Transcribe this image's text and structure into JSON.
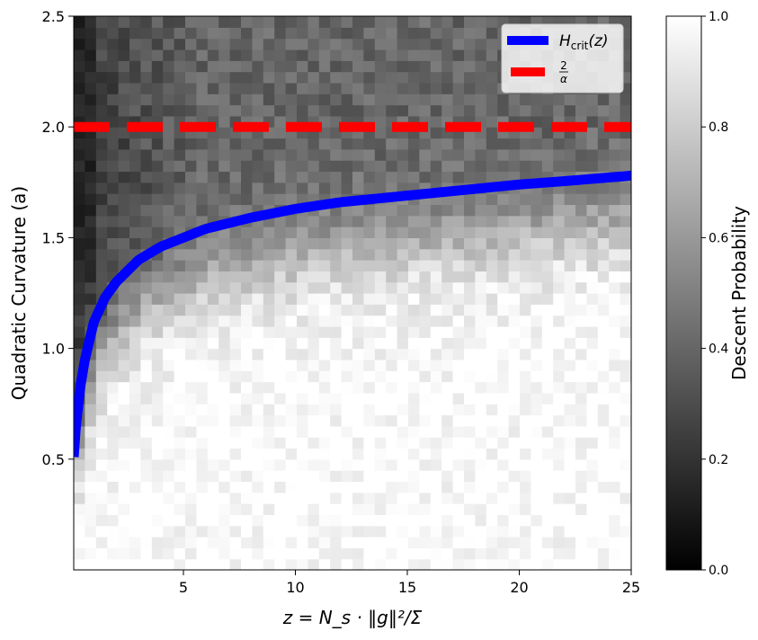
{
  "chart_data": {
    "type": "heatmap",
    "xlabel": "z = N_s · ‖g‖²/Σ",
    "ylabel": "Quadratic Curvature (a)",
    "xlim": [
      0.1,
      25
    ],
    "ylim": [
      0,
      2.5
    ],
    "xticks": [
      5,
      10,
      15,
      20,
      25
    ],
    "xtick_labels": [
      "5",
      "10",
      "15",
      "20",
      "25"
    ],
    "yticks": [
      0.5,
      1.0,
      1.5,
      2.0,
      2.5
    ],
    "ytick_labels": [
      "0.5",
      "1.0",
      "1.5",
      "2.0",
      "2.5"
    ],
    "colormap": "gray",
    "heatmap": {
      "nx": 50,
      "ny": 50,
      "description_value": "descent probability in [0,1]"
    },
    "colorbar": {
      "label": "Descent Probability",
      "range": [
        0,
        1
      ],
      "ticks": [
        0,
        0.2,
        0.4,
        0.6,
        0.8,
        1.0
      ],
      "tick_labels": [
        "0.0",
        "0.2",
        "0.4",
        "0.6",
        "0.8",
        "1.0"
      ]
    },
    "series": [
      {
        "name": "H_crit(z)",
        "type": "line",
        "color": "#0000ff",
        "x": [
          0.1,
          0.2,
          0.4,
          0.6,
          1,
          1.5,
          2,
          3,
          4,
          5,
          6,
          8,
          10,
          12,
          15,
          18,
          20,
          22,
          25
        ],
        "y": [
          0.51,
          0.65,
          0.83,
          0.95,
          1.12,
          1.23,
          1.3,
          1.4,
          1.46,
          1.5,
          1.54,
          1.59,
          1.63,
          1.66,
          1.69,
          1.72,
          1.74,
          1.755,
          1.78
        ]
      },
      {
        "name": "2/α",
        "type": "line",
        "style": "dashed",
        "color": "#ff0000",
        "x": [
          0.1,
          25
        ],
        "y": [
          2.0,
          2.0
        ]
      }
    ],
    "legend": {
      "placement": "top-right",
      "entries": [
        {
          "main": "H",
          "sub": "crit",
          "rest": "(z)",
          "color": "#0000ff"
        },
        {
          "num": "2",
          "den": "α",
          "color": "#ff0000"
        }
      ]
    }
  }
}
